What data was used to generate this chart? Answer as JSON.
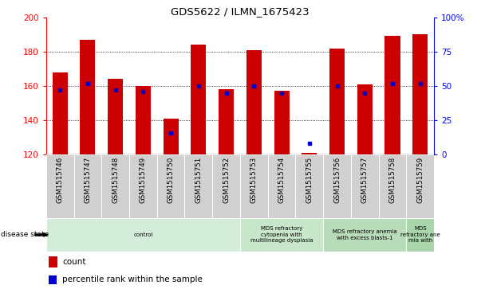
{
  "title": "GDS5622 / ILMN_1675423",
  "samples": [
    "GSM1515746",
    "GSM1515747",
    "GSM1515748",
    "GSM1515749",
    "GSM1515750",
    "GSM1515751",
    "GSM1515752",
    "GSM1515753",
    "GSM1515754",
    "GSM1515755",
    "GSM1515756",
    "GSM1515757",
    "GSM1515758",
    "GSM1515759"
  ],
  "counts": [
    168,
    187,
    164,
    160,
    141,
    184,
    158,
    181,
    157,
    121,
    182,
    161,
    189,
    190
  ],
  "percentiles": [
    47,
    52,
    47,
    46,
    16,
    50,
    45,
    50,
    45,
    8,
    50,
    45,
    52,
    52
  ],
  "ymin": 120,
  "ymax": 200,
  "yticks": [
    120,
    140,
    160,
    180,
    200
  ],
  "y2ticks": [
    0,
    25,
    50,
    75,
    100
  ],
  "bar_color": "#cc0000",
  "dot_color": "#0000cc",
  "disease_groups": [
    {
      "label": "control",
      "start": 0,
      "end": 7,
      "color": "#d4edda"
    },
    {
      "label": "MDS refractory\ncytopenia with\nmultilineage dysplasia",
      "start": 7,
      "end": 10,
      "color": "#c8e6c9"
    },
    {
      "label": "MDS refractory anemia\nwith excess blasts-1",
      "start": 10,
      "end": 13,
      "color": "#b8dbb9"
    },
    {
      "label": "MDS\nrefractory ane\nmia with",
      "start": 13,
      "end": 14,
      "color": "#aad4ab"
    }
  ],
  "disease_label": "disease state",
  "legend_count_label": "count",
  "legend_pct_label": "percentile rank within the sample",
  "bar_width": 0.55,
  "xtick_bg": "#d0d0d0",
  "spine_color_left": "red",
  "spine_color_right": "blue"
}
